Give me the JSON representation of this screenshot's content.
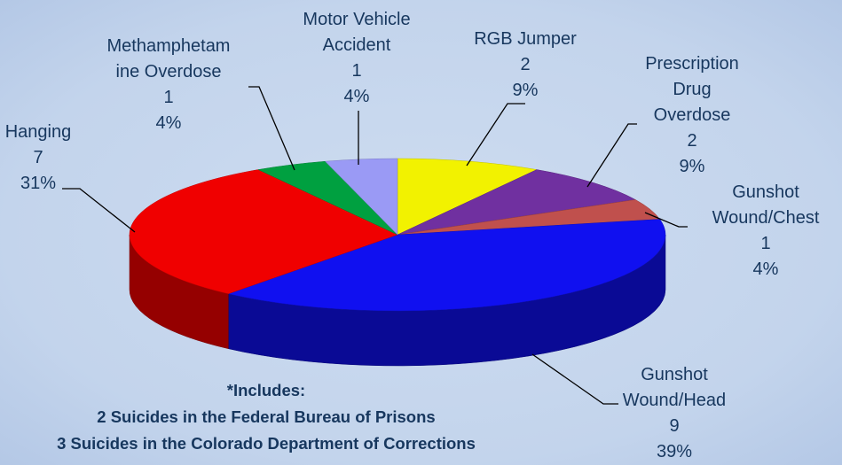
{
  "chart_data": {
    "type": "pie3d",
    "categories": [
      "RGB Jumper",
      "Prescription Drug Overdose",
      "Gunshot Wound/Chest",
      "Gunshot Wound/Head",
      "Hanging",
      "Methamphetamine Overdose",
      "Motor Vehicle Accident"
    ],
    "values": [
      2,
      2,
      1,
      9,
      7,
      1,
      1
    ],
    "percent_labels": [
      "9%",
      "9%",
      "4%",
      "39%",
      "31%",
      "4%",
      "4%"
    ],
    "colors": [
      "#f2f200",
      "#7030a0",
      "#c0504d",
      "#1010f0",
      "#f00000",
      "#00a040",
      "#9a9af5"
    ],
    "notes": [
      "*Includes:",
      "2 Suicides in the Federal Bureau of Prisons",
      "3 Suicides in the Colorado Department of Corrections"
    ]
  }
}
